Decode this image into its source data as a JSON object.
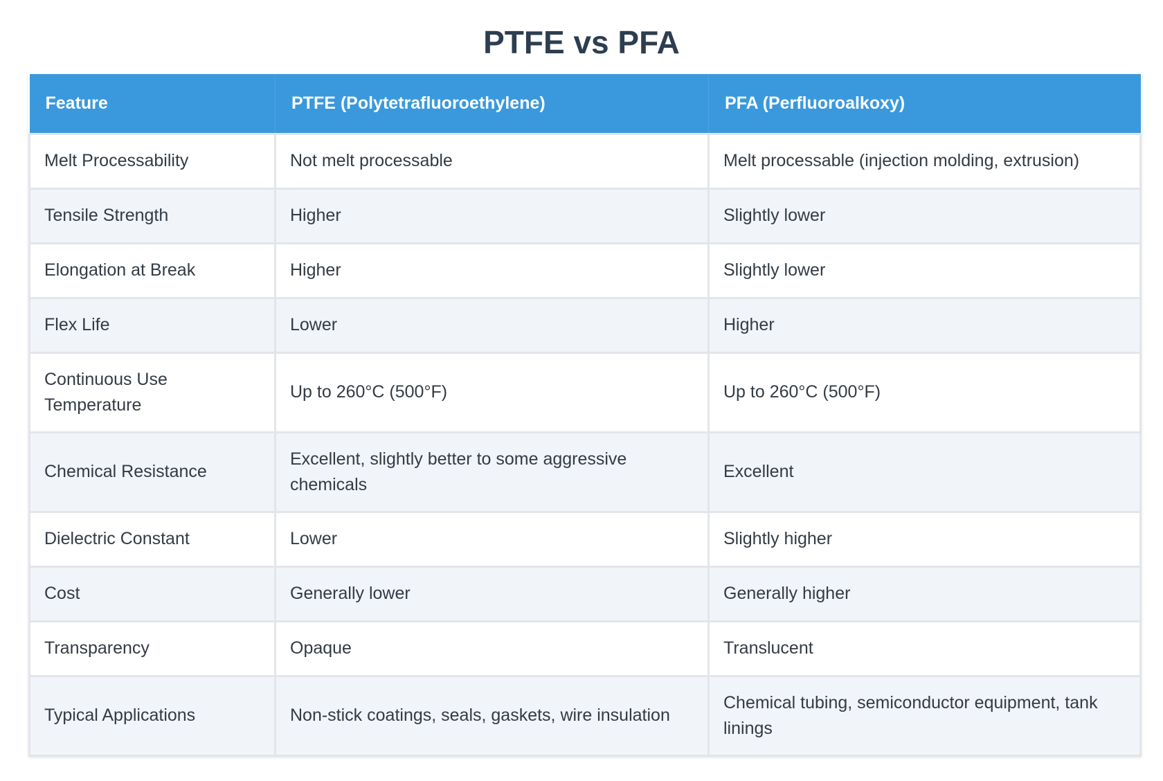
{
  "title": "PTFE vs PFA",
  "table": {
    "headers": [
      "Feature",
      "PTFE (Polytetrafluoroethylene)",
      "PFA (Perfluoroalkoxy)"
    ],
    "rows": [
      [
        "Melt Processability",
        "Not melt processable",
        "Melt processable (injection molding, extrusion)"
      ],
      [
        "Tensile Strength",
        "Higher",
        "Slightly lower"
      ],
      [
        "Elongation at Break",
        "Higher",
        "Slightly lower"
      ],
      [
        "Flex Life",
        "Lower",
        "Higher"
      ],
      [
        "Continuous Use Temperature",
        "Up to 260°C (500°F)",
        "Up to 260°C (500°F)"
      ],
      [
        "Chemical Resistance",
        "Excellent, slightly better to some aggressive chemicals",
        "Excellent"
      ],
      [
        "Dielectric Constant",
        "Lower",
        "Slightly higher"
      ],
      [
        "Cost",
        "Generally lower",
        "Generally higher"
      ],
      [
        "Transparency",
        "Opaque",
        "Translucent"
      ],
      [
        "Typical Applications",
        "Non-stick coatings, seals, gaskets, wire insulation",
        "Chemical tubing, semiconductor equipment, tank linings"
      ]
    ]
  },
  "colors": {
    "header_bg": "#3a99dc",
    "header_text": "#ffffff",
    "title_text": "#2c3e50",
    "row_even_bg": "#f1f4f8",
    "border": "#e2e6ea"
  }
}
